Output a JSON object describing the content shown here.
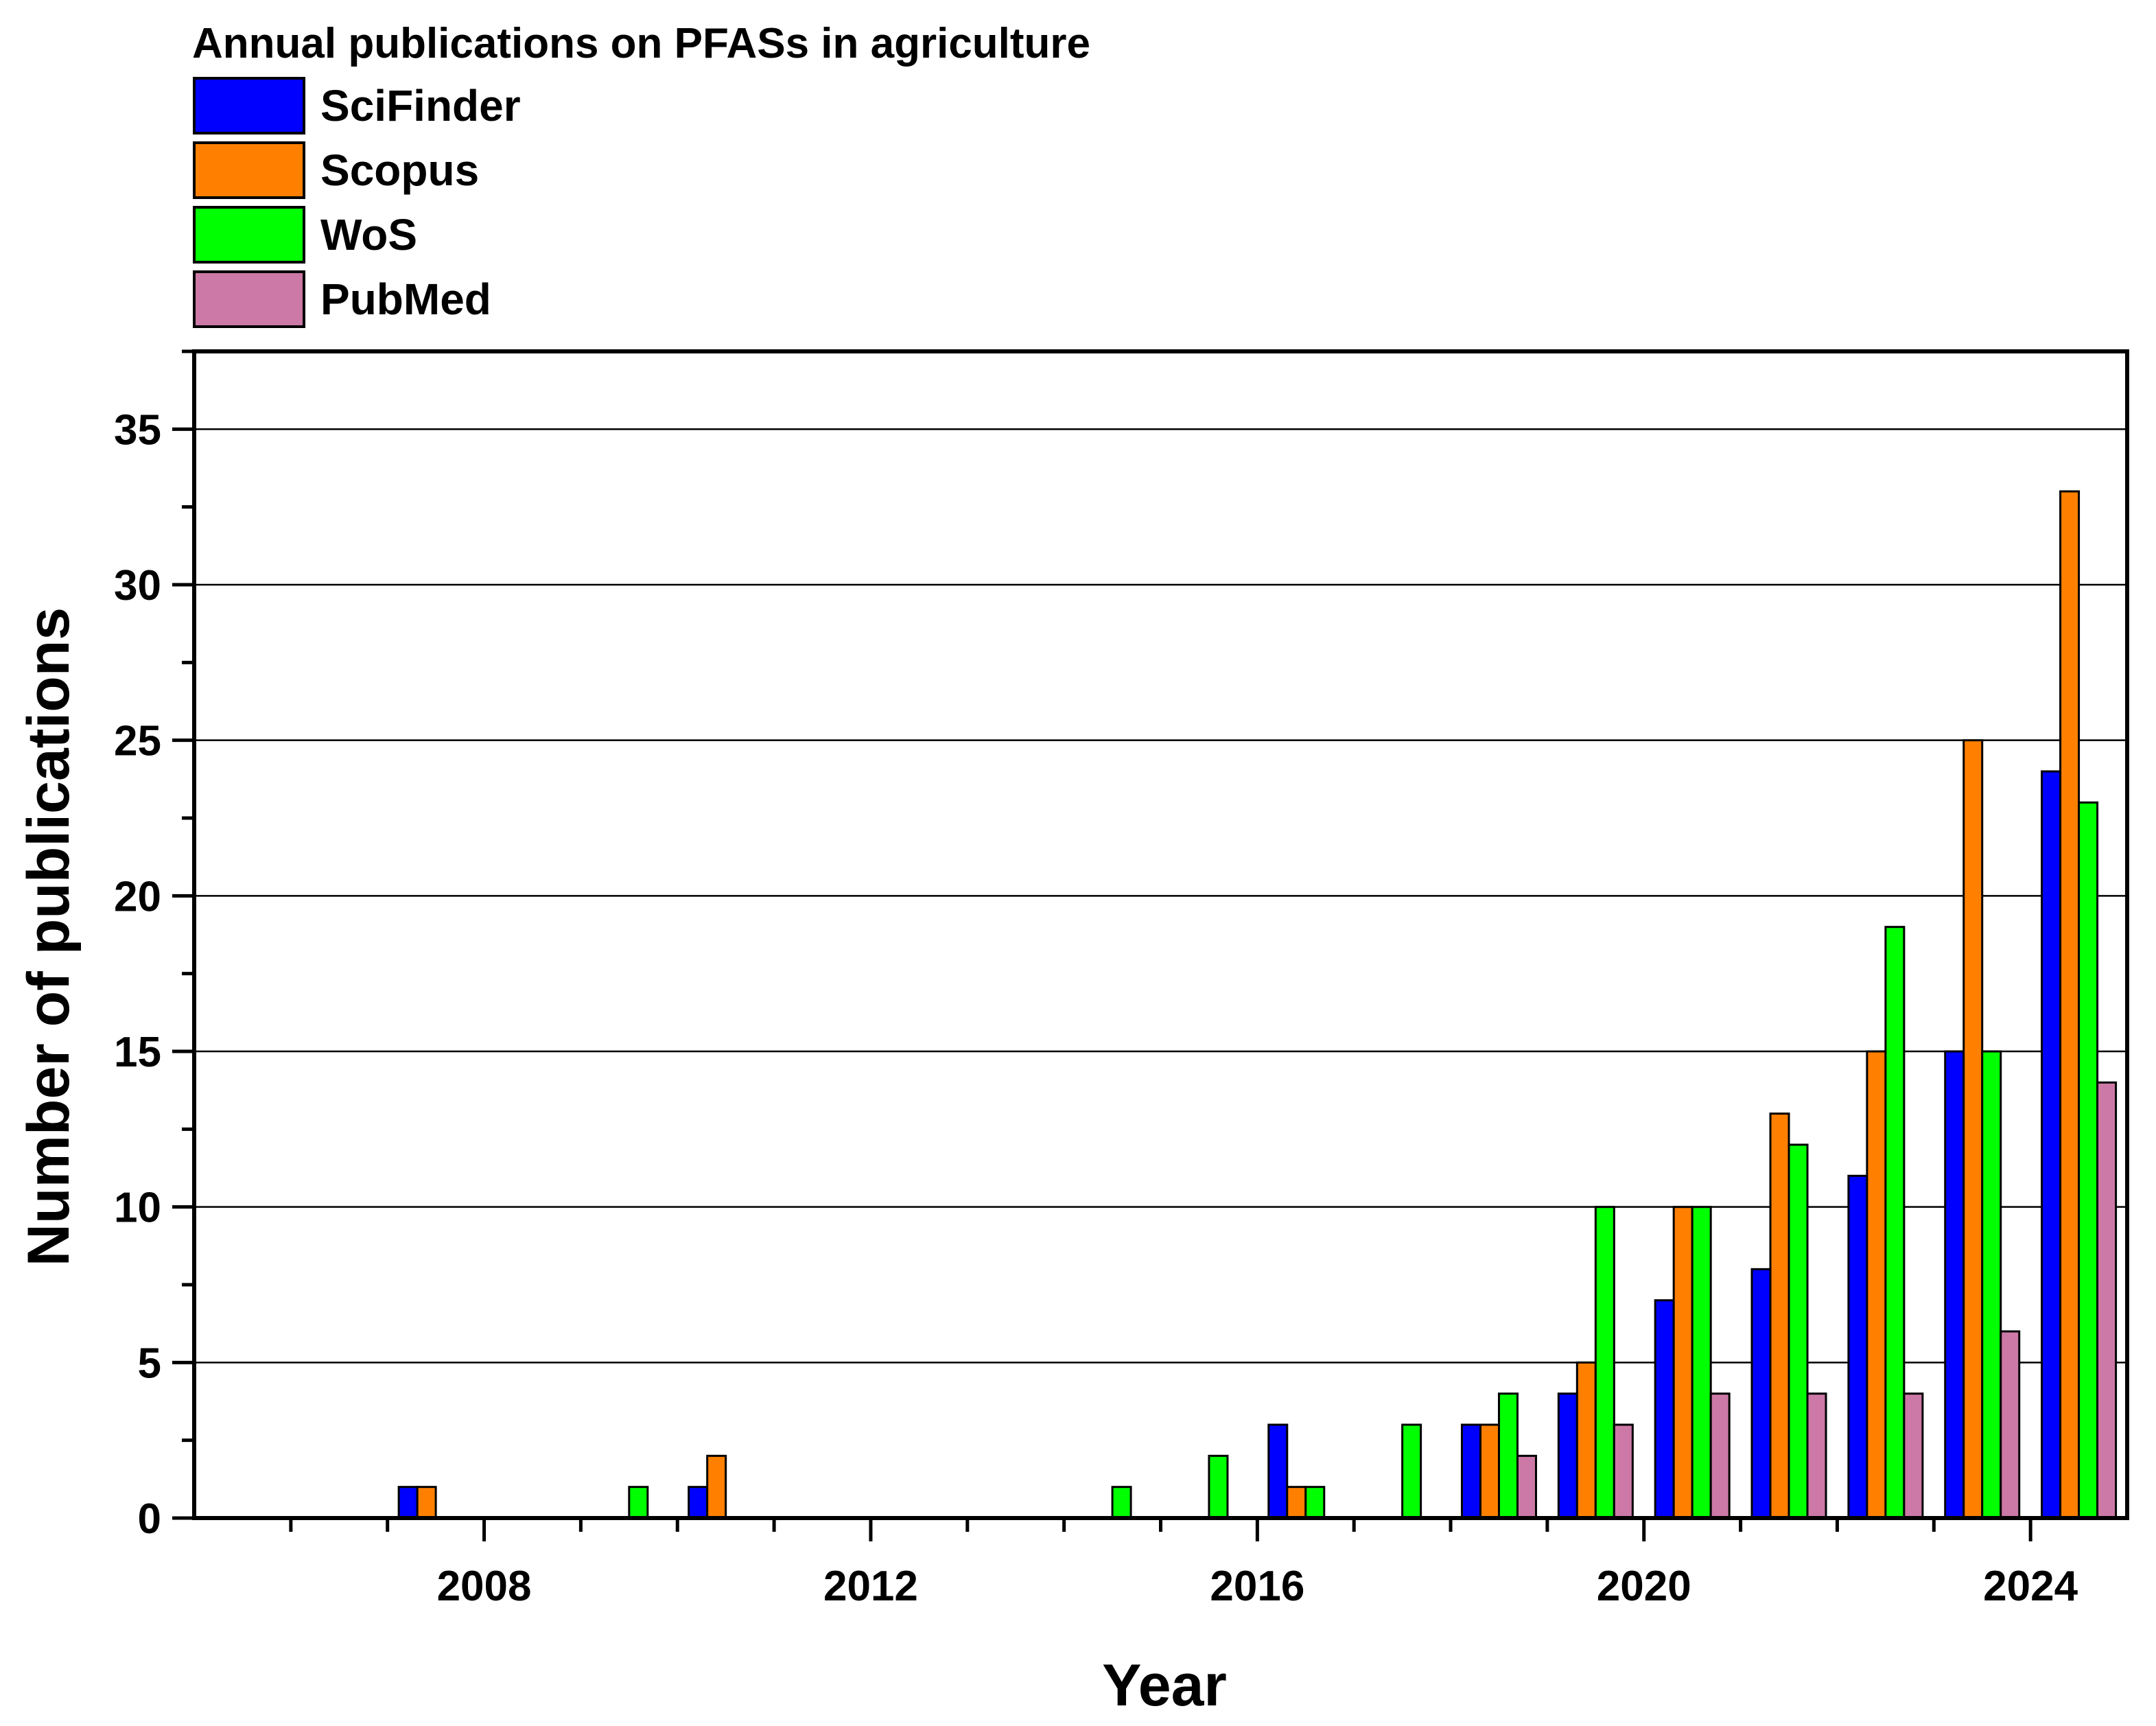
{
  "chart_data": {
    "type": "bar",
    "title": "Annual publications on PFASs in agriculture",
    "xlabel": "Year",
    "ylabel": "Number of publications",
    "xlim": [
      2005,
      2025
    ],
    "ylim": [
      0,
      37.5
    ],
    "x_ticks": [
      2008,
      2012,
      2016,
      2020,
      2024
    ],
    "x_tick_labels": [
      "2008",
      "2012",
      "2016",
      "2020",
      "2024"
    ],
    "y_ticks": [
      0,
      5,
      10,
      15,
      20,
      25,
      30,
      35
    ],
    "y_tick_labels": [
      "0",
      "5",
      "10",
      "15",
      "20",
      "25",
      "30",
      "35"
    ],
    "grid": true,
    "legend_position": "top-left",
    "categories": [
      2006,
      2007,
      2008,
      2009,
      2010,
      2011,
      2012,
      2013,
      2014,
      2015,
      2016,
      2017,
      2018,
      2019,
      2020,
      2021,
      2022,
      2023,
      2024
    ],
    "series": [
      {
        "name": "SciFinder",
        "color": "#0000ff",
        "values": [
          0,
          1,
          0,
          0,
          1,
          0,
          0,
          0,
          0,
          0,
          3,
          0,
          3,
          4,
          7,
          8,
          11,
          15,
          24
        ]
      },
      {
        "name": "Scopus",
        "color": "#ff8000",
        "values": [
          0,
          1,
          0,
          0,
          2,
          0,
          0,
          0,
          0,
          0,
          1,
          0,
          3,
          5,
          10,
          13,
          15,
          25,
          33
        ]
      },
      {
        "name": "WoS",
        "color": "#00ff00",
        "values": [
          0,
          0,
          0,
          1,
          0,
          0,
          0,
          0,
          1,
          2,
          1,
          3,
          4,
          10,
          10,
          12,
          19,
          15,
          23
        ]
      },
      {
        "name": "PubMed",
        "color": "#cc79a7",
        "values": [
          0,
          0,
          0,
          0,
          0,
          0,
          0,
          0,
          0,
          0,
          0,
          0,
          2,
          3,
          4,
          4,
          4,
          6,
          14
        ]
      }
    ]
  }
}
